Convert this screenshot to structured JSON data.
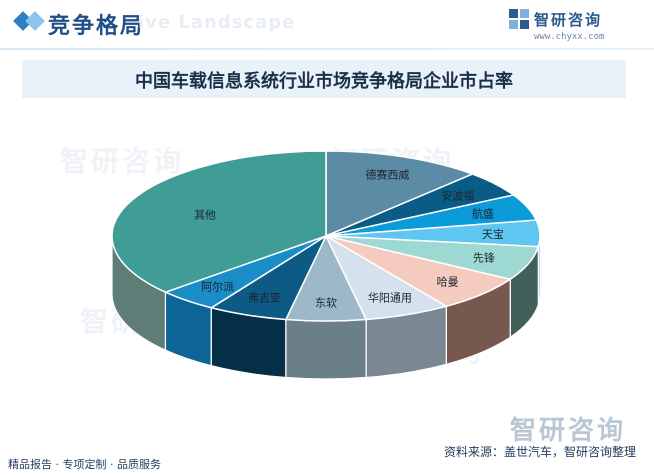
{
  "header": {
    "title": "竞争格局",
    "watermark": "ive Landscape",
    "brand_name": "智研咨询",
    "brand_url": "www.chyxx.com"
  },
  "footer": {
    "left": "精品报告 · 专项定制 · 品质服务",
    "source": "资料来源：盖世汽车，智研咨询整理",
    "watermark": "智研咨询"
  },
  "chart_data": {
    "type": "pie",
    "title": "中国车载信息系统行业市场竞争格局企业市占率",
    "categories": [
      "德赛西威",
      "安波福",
      "航盛",
      "天宝",
      "先锋",
      "哈曼",
      "华阳通用",
      "东软",
      "弗吉亚",
      "阿尔派",
      "其他"
    ],
    "values": [
      12.0,
      5.0,
      5.0,
      5.0,
      6.5,
      7.0,
      6.5,
      6.0,
      6.0,
      4.5,
      36.5
    ],
    "colors": [
      "#5b8ba5",
      "#0a5c86",
      "#0a9bd8",
      "#5ec6f0",
      "#9ed8d3",
      "#f6cbbf",
      "#d5e1ec",
      "#9db9c8",
      "#0d5a84",
      "#1a8cc7",
      "#3f9d96"
    ],
    "side_colors": [
      "#3e6d86",
      "#063f5f",
      "#0a78aa",
      "#3aa2cc",
      "#425f5a",
      "#77584f",
      "#7b8793",
      "#6b7f89",
      "#052f47",
      "#0d6596",
      "#5e7d76"
    ],
    "start_angle_deg": -90,
    "direction": "clockwise",
    "legend": "labels-on-slices"
  }
}
